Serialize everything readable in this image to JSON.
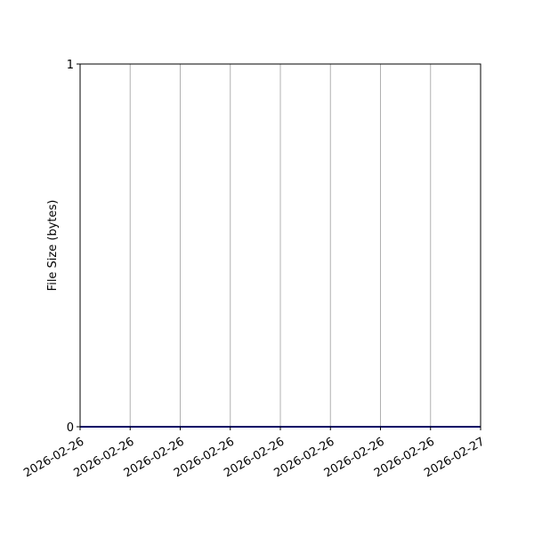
{
  "chart_data": {
    "type": "line",
    "title": "",
    "xlabel": "",
    "ylabel": "File Size (bytes)",
    "x_tick_labels": [
      "2026-02-26",
      "2026-02-26",
      "2026-02-26",
      "2026-02-26",
      "2026-02-26",
      "2026-02-26",
      "2026-02-26",
      "2026-02-26",
      "2026-02-27"
    ],
    "y_ticks": [
      0,
      1
    ],
    "y_tick_labels": [
      "0",
      "1"
    ],
    "ylim": [
      0,
      1
    ],
    "grid": "x-only",
    "series": [
      {
        "values": [
          0,
          0
        ],
        "color": "#0000cc"
      }
    ],
    "colors": {
      "grid": "#b0b0b0",
      "axis": "#000000"
    }
  }
}
